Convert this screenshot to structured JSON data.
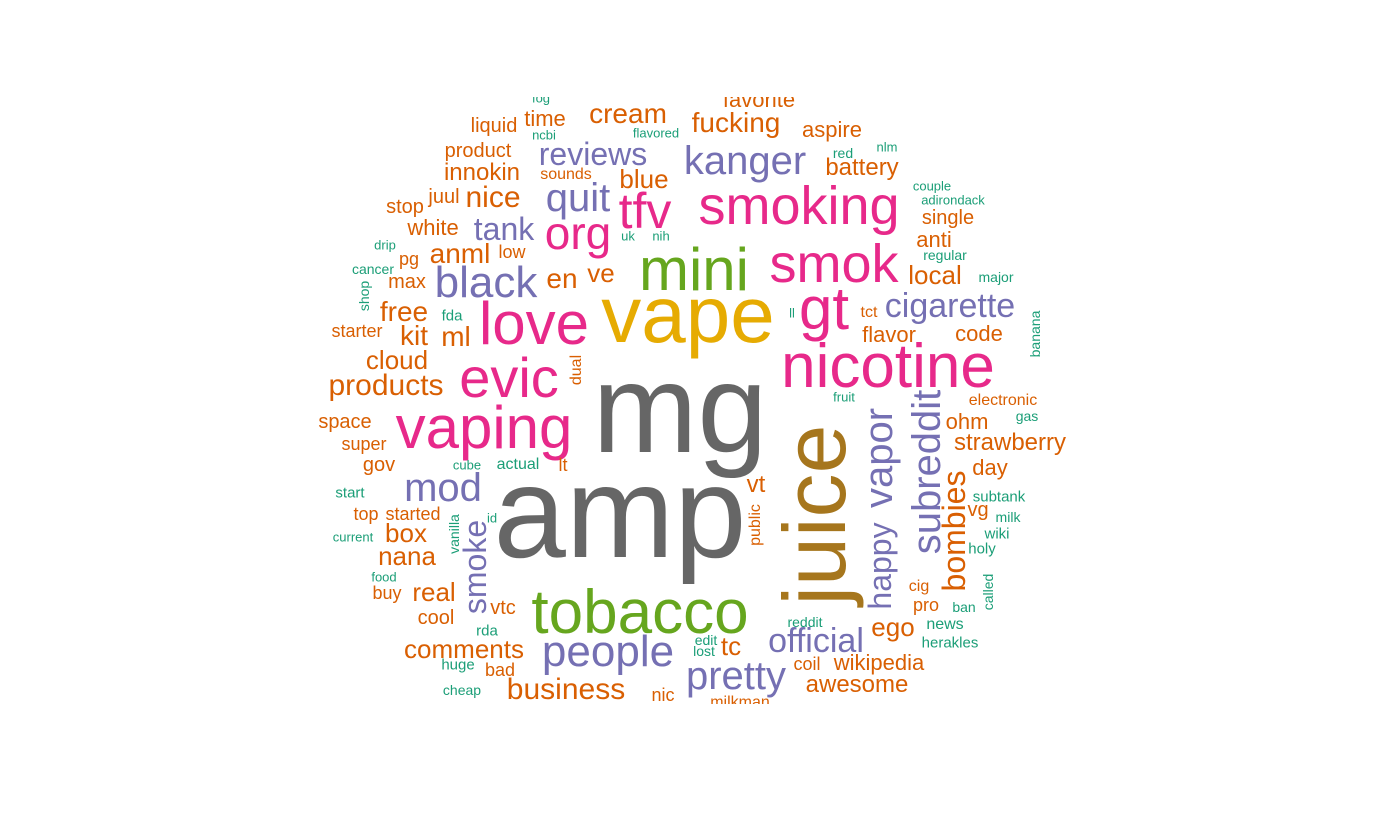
{
  "palette": {
    "gray": "#666666",
    "orange": "#d95f02",
    "purple": "#7570b3",
    "pink": "#e7298a",
    "green": "#66a61e",
    "yellow": "#e6ab02",
    "brown": "#a6761d",
    "teal": "#1b9e77"
  },
  "words": [
    {
      "text": "amp",
      "size": 130,
      "color": "gray"
    },
    {
      "text": "mg",
      "size": 126,
      "color": "gray"
    },
    {
      "text": "juice",
      "size": 88,
      "color": "brown",
      "vertical": true
    },
    {
      "text": "vape",
      "size": 80,
      "color": "yellow"
    },
    {
      "text": "tobacco",
      "size": 62,
      "color": "green"
    },
    {
      "text": "nicotine",
      "size": 62,
      "color": "pink"
    },
    {
      "text": "vaping",
      "size": 60,
      "color": "pink"
    },
    {
      "text": "mini",
      "size": 60,
      "color": "green"
    },
    {
      "text": "love",
      "size": 60,
      "color": "pink"
    },
    {
      "text": "evic",
      "size": 56,
      "color": "pink"
    },
    {
      "text": "smoking",
      "size": 54,
      "color": "pink"
    },
    {
      "text": "smok",
      "size": 54,
      "color": "pink"
    },
    {
      "text": "gt",
      "size": 60,
      "color": "pink"
    },
    {
      "text": "tfv",
      "size": 50,
      "color": "pink"
    },
    {
      "text": "org",
      "size": 46,
      "color": "pink"
    },
    {
      "text": "black",
      "size": 44,
      "color": "purple"
    },
    {
      "text": "people",
      "size": 44,
      "color": "purple"
    },
    {
      "text": "subreddit",
      "size": 40,
      "color": "purple",
      "vertical": true
    },
    {
      "text": "mod",
      "size": 40,
      "color": "purple"
    },
    {
      "text": "pretty",
      "size": 40,
      "color": "purple"
    },
    {
      "text": "kanger",
      "size": 40,
      "color": "purple"
    },
    {
      "text": "quit",
      "size": 40,
      "color": "purple"
    },
    {
      "text": "vapor",
      "size": 40,
      "color": "purple",
      "vertical": true
    },
    {
      "text": "cigarette",
      "size": 34,
      "color": "purple"
    },
    {
      "text": "official",
      "size": 34,
      "color": "purple"
    },
    {
      "text": "reviews",
      "size": 32,
      "color": "purple"
    },
    {
      "text": "tank",
      "size": 32,
      "color": "purple"
    },
    {
      "text": "bombies",
      "size": 32,
      "color": "orange",
      "vertical": true
    },
    {
      "text": "smoke",
      "size": 32,
      "color": "purple",
      "vertical": true
    },
    {
      "text": "happy",
      "size": 32,
      "color": "purple",
      "vertical": true
    },
    {
      "text": "business",
      "size": 30,
      "color": "orange"
    },
    {
      "text": "products",
      "size": 30,
      "color": "orange"
    },
    {
      "text": "nice",
      "size": 30,
      "color": "orange"
    },
    {
      "text": "fucking",
      "size": 28,
      "color": "orange"
    },
    {
      "text": "cream",
      "size": 28,
      "color": "orange"
    },
    {
      "text": "anml",
      "size": 28,
      "color": "orange"
    },
    {
      "text": "free",
      "size": 28,
      "color": "orange"
    },
    {
      "text": "comments",
      "size": 26,
      "color": "orange"
    },
    {
      "text": "cloud",
      "size": 26,
      "color": "orange"
    },
    {
      "text": "kit",
      "size": 28,
      "color": "orange"
    },
    {
      "text": "ml",
      "size": 28,
      "color": "orange"
    },
    {
      "text": "en",
      "size": 28,
      "color": "orange"
    },
    {
      "text": "ve",
      "size": 26,
      "color": "orange"
    },
    {
      "text": "blue",
      "size": 26,
      "color": "orange"
    },
    {
      "text": "local",
      "size": 26,
      "color": "orange"
    },
    {
      "text": "box",
      "size": 26,
      "color": "orange"
    },
    {
      "text": "nana",
      "size": 26,
      "color": "orange"
    },
    {
      "text": "real",
      "size": 26,
      "color": "orange"
    },
    {
      "text": "awesome",
      "size": 24,
      "color": "orange"
    },
    {
      "text": "strawberry",
      "size": 24,
      "color": "orange"
    },
    {
      "text": "battery",
      "size": 24,
      "color": "orange"
    },
    {
      "text": "ego",
      "size": 26,
      "color": "orange"
    },
    {
      "text": "tc",
      "size": 26,
      "color": "orange"
    },
    {
      "text": "vt",
      "size": 24,
      "color": "orange"
    },
    {
      "text": "innokin",
      "size": 24,
      "color": "orange"
    },
    {
      "text": "wikipedia",
      "size": 22,
      "color": "orange"
    },
    {
      "text": "white",
      "size": 22,
      "color": "orange"
    },
    {
      "text": "time",
      "size": 22,
      "color": "orange"
    },
    {
      "text": "ohm",
      "size": 22,
      "color": "orange"
    },
    {
      "text": "code",
      "size": 22,
      "color": "orange"
    },
    {
      "text": "flavor",
      "size": 22,
      "color": "orange"
    },
    {
      "text": "anti",
      "size": 22,
      "color": "orange"
    },
    {
      "text": "day",
      "size": 22,
      "color": "orange"
    },
    {
      "text": "aspire",
      "size": 22,
      "color": "orange"
    },
    {
      "text": "favorite",
      "size": 22,
      "color": "orange"
    },
    {
      "text": "product",
      "size": 20,
      "color": "orange"
    },
    {
      "text": "liquid",
      "size": 20,
      "color": "orange"
    },
    {
      "text": "max",
      "size": 20,
      "color": "orange"
    },
    {
      "text": "space",
      "size": 20,
      "color": "orange"
    },
    {
      "text": "gov",
      "size": 20,
      "color": "orange"
    },
    {
      "text": "single",
      "size": 20,
      "color": "orange"
    },
    {
      "text": "vg",
      "size": 20,
      "color": "orange"
    },
    {
      "text": "cool",
      "size": 20,
      "color": "orange"
    },
    {
      "text": "vtc",
      "size": 20,
      "color": "orange"
    },
    {
      "text": "juul",
      "size": 20,
      "color": "orange"
    },
    {
      "text": "stop",
      "size": 20,
      "color": "orange"
    },
    {
      "text": "pro",
      "size": 18,
      "color": "orange"
    },
    {
      "text": "coil",
      "size": 18,
      "color": "orange"
    },
    {
      "text": "low",
      "size": 18,
      "color": "orange"
    },
    {
      "text": "starter",
      "size": 18,
      "color": "orange"
    },
    {
      "text": "super",
      "size": 18,
      "color": "orange"
    },
    {
      "text": "started",
      "size": 18,
      "color": "orange"
    },
    {
      "text": "top",
      "size": 18,
      "color": "orange"
    },
    {
      "text": "buy",
      "size": 18,
      "color": "orange"
    },
    {
      "text": "bad",
      "size": 18,
      "color": "orange"
    },
    {
      "text": "nic",
      "size": 18,
      "color": "orange"
    },
    {
      "text": "pg",
      "size": 18,
      "color": "orange"
    },
    {
      "text": "lt",
      "size": 18,
      "color": "orange"
    },
    {
      "text": "tct",
      "size": 16,
      "color": "orange"
    },
    {
      "text": "cig",
      "size": 16,
      "color": "orange"
    },
    {
      "text": "sounds",
      "size": 16,
      "color": "orange"
    },
    {
      "text": "dual",
      "size": 16,
      "color": "orange",
      "vertical": true
    },
    {
      "text": "public",
      "size": 16,
      "color": "orange",
      "vertical": true
    },
    {
      "text": "electronic",
      "size": 16,
      "color": "orange"
    },
    {
      "text": "actual",
      "size": 16,
      "color": "teal"
    },
    {
      "text": "news",
      "size": 16,
      "color": "teal"
    },
    {
      "text": "subtank",
      "size": 15,
      "color": "teal"
    },
    {
      "text": "rda",
      "size": 15,
      "color": "teal"
    },
    {
      "text": "start",
      "size": 15,
      "color": "teal"
    },
    {
      "text": "huge",
      "size": 15,
      "color": "teal"
    },
    {
      "text": "fda",
      "size": 15,
      "color": "teal"
    },
    {
      "text": "herakles",
      "size": 15,
      "color": "teal"
    },
    {
      "text": "holy",
      "size": 15,
      "color": "teal"
    },
    {
      "text": "wiki",
      "size": 15,
      "color": "teal"
    },
    {
      "text": "cancer",
      "size": 14,
      "color": "teal"
    },
    {
      "text": "cheap",
      "size": 14,
      "color": "teal"
    },
    {
      "text": "major",
      "size": 14,
      "color": "teal"
    },
    {
      "text": "regular",
      "size": 14,
      "color": "teal"
    },
    {
      "text": "milk",
      "size": 14,
      "color": "teal"
    },
    {
      "text": "gas",
      "size": 14,
      "color": "teal"
    },
    {
      "text": "reddit",
      "size": 14,
      "color": "teal"
    },
    {
      "text": "ban",
      "size": 14,
      "color": "teal"
    },
    {
      "text": "lost",
      "size": 14,
      "color": "teal"
    },
    {
      "text": "red",
      "size": 14,
      "color": "teal"
    },
    {
      "text": "edit",
      "size": 14,
      "color": "teal"
    },
    {
      "text": "current",
      "size": 13,
      "color": "teal"
    },
    {
      "text": "food",
      "size": 13,
      "color": "teal"
    },
    {
      "text": "couple",
      "size": 13,
      "color": "teal"
    },
    {
      "text": "adirondack",
      "size": 13,
      "color": "teal"
    },
    {
      "text": "flavored",
      "size": 13,
      "color": "teal"
    },
    {
      "text": "drip",
      "size": 13,
      "color": "teal"
    },
    {
      "text": "ncbi",
      "size": 13,
      "color": "teal"
    },
    {
      "text": "nlm",
      "size": 13,
      "color": "teal"
    },
    {
      "text": "fruit",
      "size": 13,
      "color": "teal"
    },
    {
      "text": "uk",
      "size": 13,
      "color": "teal"
    },
    {
      "text": "nih",
      "size": 13,
      "color": "teal"
    },
    {
      "text": "cube",
      "size": 13,
      "color": "teal"
    },
    {
      "text": "id",
      "size": 13,
      "color": "teal"
    },
    {
      "text": "ll",
      "size": 13,
      "color": "teal"
    },
    {
      "text": "fog",
      "size": 13,
      "color": "teal"
    },
    {
      "text": "milkman",
      "size": 16,
      "color": "orange"
    },
    {
      "text": "shop",
      "size": 14,
      "color": "teal",
      "vertical": true
    },
    {
      "text": "vanilla",
      "size": 14,
      "color": "teal",
      "vertical": true
    },
    {
      "text": "banana",
      "size": 14,
      "color": "teal",
      "vertical": true
    },
    {
      "text": "called",
      "size": 14,
      "color": "teal",
      "vertical": true
    }
  ]
}
